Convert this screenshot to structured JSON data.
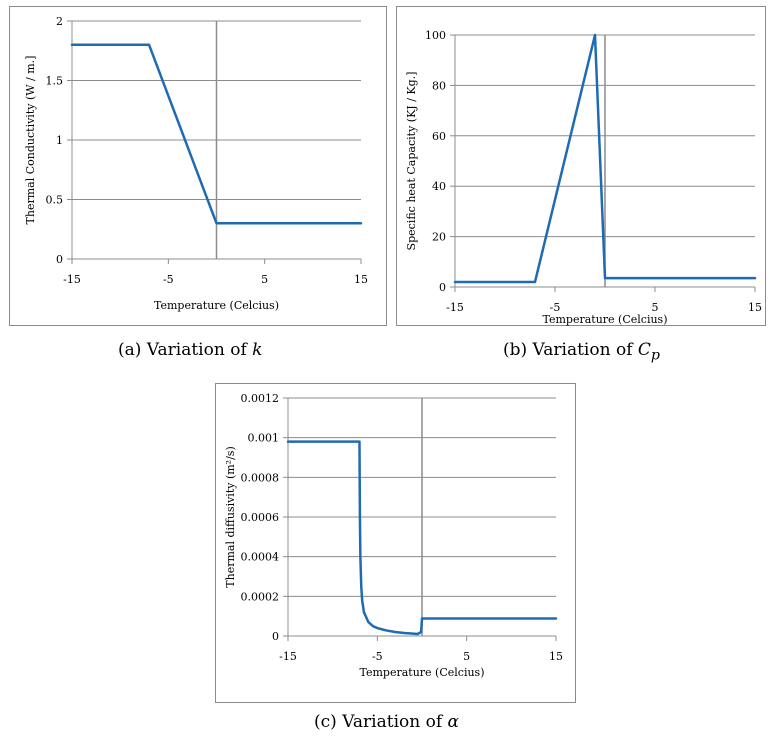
{
  "captions": {
    "a_prefix": "(a)  Variation of ",
    "a_symbol": "k",
    "b_prefix": "(b)  Variation of ",
    "b_symbol": "C",
    "b_subscript": "p",
    "c_prefix": "(c)  Variation of ",
    "c_symbol": "α"
  },
  "chart_data": [
    {
      "id": "a",
      "type": "line",
      "title": "",
      "xlabel": "Temperature (Celcius)",
      "ylabel": "Thermal Conductivity  (W / m.]",
      "xlim": [
        -15,
        15
      ],
      "ylim": [
        0,
        2
      ],
      "xticks": [
        -15,
        -5,
        5,
        15
      ],
      "yticks": [
        0,
        0.5,
        1,
        1.5,
        2
      ],
      "ytick_labels": [
        "0",
        "0.5",
        "1",
        "1.5",
        "2"
      ],
      "grid": "horizontal",
      "freezing_line_x": 0,
      "line_color": "#1f6bb3",
      "series": [
        {
          "x": [
            -15,
            -7,
            0,
            0,
            15
          ],
          "y": [
            1.8,
            1.8,
            0.3,
            0.3,
            0.3
          ]
        }
      ]
    },
    {
      "id": "b",
      "type": "line",
      "title": "",
      "xlabel": "Temperature (Celcius)",
      "ylabel": "Specific heat Capacity  (KJ / Kg.]",
      "xlim": [
        -15,
        15
      ],
      "ylim": [
        0,
        100
      ],
      "xticks": [
        -15,
        -5,
        5,
        15
      ],
      "yticks": [
        0,
        20,
        40,
        60,
        80,
        100
      ],
      "ytick_labels": [
        "0",
        "20",
        "40",
        "60",
        "80",
        "100"
      ],
      "grid": "horizontal",
      "freezing_line_x": 0,
      "line_color": "#1f6bb3",
      "series": [
        {
          "x": [
            -15,
            -7,
            -1,
            0,
            15
          ],
          "y": [
            2,
            2,
            100,
            3.5,
            3.5
          ]
        }
      ]
    },
    {
      "id": "c",
      "type": "line",
      "title": "",
      "xlabel": "Temperature (Celcius)",
      "ylabel": "Thermal diffusivity  (m²/s)",
      "xlim": [
        -15,
        15
      ],
      "ylim": [
        0,
        0.0012
      ],
      "xticks": [
        -15,
        -5,
        5,
        15
      ],
      "yticks": [
        0,
        0.0002,
        0.0004,
        0.0006,
        0.0008,
        0.001,
        0.0012
      ],
      "ytick_labels": [
        "0",
        "0.0002",
        "0.0004",
        "0.0006",
        "0.0008",
        "0.001",
        "0.0012"
      ],
      "grid": "horizontal",
      "freezing_line_x": 0,
      "line_color": "#1f6bb3",
      "series": [
        {
          "x": [
            -15,
            -7,
            -6.95,
            -6.9,
            -6.8,
            -6.7,
            -6.5,
            -6.2,
            -6,
            -5.5,
            -5,
            -4,
            -3,
            -2,
            -1,
            -0.5,
            -0.1,
            0,
            15
          ],
          "y": [
            0.00098,
            0.00098,
            0.0006,
            0.0004,
            0.00025,
            0.00018,
            0.00012,
            9e-05,
            7e-05,
            5e-05,
            4e-05,
            2.8e-05,
            2e-05,
            1.5e-05,
            1.2e-05,
            1e-05,
            2e-05,
            8.8e-05,
            8.8e-05
          ]
        }
      ]
    }
  ]
}
